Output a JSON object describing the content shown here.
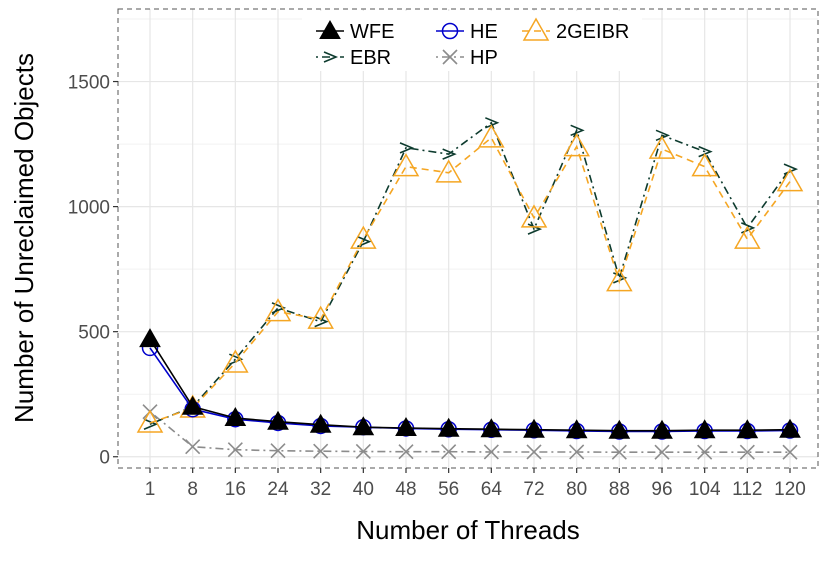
{
  "chart_data": {
    "type": "line",
    "xlabel": "Number of Threads",
    "ylabel": "Number of Unreclaimed Objects",
    "categories": [
      "1",
      "8",
      "16",
      "24",
      "32",
      "40",
      "48",
      "56",
      "64",
      "72",
      "80",
      "88",
      "96",
      "104",
      "112",
      "120"
    ],
    "ylim": [
      -45,
      1790
    ],
    "yticks": [
      0,
      500,
      1000,
      1500
    ],
    "grid": true,
    "legend_position": "top-center",
    "series": [
      {
        "name": "WFE",
        "color": "#000000",
        "marker": "filled-triangle",
        "line": "solid",
        "values": [
          470,
          200,
          155,
          140,
          128,
          118,
          115,
          112,
          110,
          108,
          106,
          104,
          104,
          106,
          106,
          108
        ]
      },
      {
        "name": "HE",
        "color": "#0000cc",
        "marker": "open-circle",
        "line": "solid",
        "values": [
          435,
          190,
          150,
          135,
          123,
          118,
          113,
          110,
          108,
          106,
          103,
          101,
          101,
          103,
          103,
          105
        ]
      },
      {
        "name": "2GEIBR",
        "color": "#f5a623",
        "marker": "open-triangle",
        "line": "dashed",
        "values": [
          135,
          195,
          375,
          580,
          550,
          870,
          1160,
          1135,
          1275,
          955,
          1240,
          700,
          1230,
          1160,
          870,
          1100
        ]
      },
      {
        "name": "EBR",
        "color": "#0d3b2e",
        "marker": "arrow",
        "line": "dotdash",
        "values": [
          130,
          200,
          390,
          595,
          540,
          860,
          1235,
          1210,
          1335,
          910,
          1305,
          715,
          1285,
          1220,
          915,
          1150
        ]
      },
      {
        "name": "HP",
        "color": "#8c8c8c",
        "marker": "cross",
        "line": "dotdash",
        "values": [
          180,
          40,
          28,
          24,
          22,
          21,
          20,
          20,
          19,
          19,
          19,
          18,
          18,
          18,
          18,
          18
        ]
      }
    ]
  }
}
